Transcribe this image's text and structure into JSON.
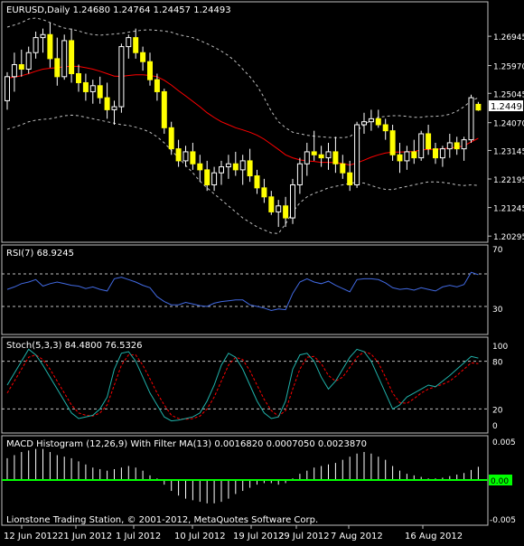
{
  "colors": {
    "background": "#000000",
    "panel_border": "#c0c0c0",
    "text": "#ffffff",
    "candle_bull_body": "#000000",
    "candle_bull_border": "#ffffff",
    "candle_bear_body": "#ffff00",
    "bands": "#c0c0c0",
    "ma": "#ff0000",
    "rsi": "#4169e1",
    "stoch_main": "#20b2aa",
    "stoch_signal": "#ff0000",
    "macd_bars": "#ffffff",
    "macd_filter": "#00ff00",
    "current_price_bg": "#ffffff",
    "current_price_text": "#000000"
  },
  "chart_data": [
    {
      "type": "candlestick",
      "title": "EURUSD,Daily  1.24680 1.24764 1.24457 1.24493",
      "symbol": "EURUSD,Daily",
      "ohlc_text": "1.24680 1.24764 1.24457 1.24493",
      "current_price": "1.24493",
      "y_ticks": [
        "1.26945",
        "1.25970",
        "1.25045",
        "1.24070",
        "1.23145",
        "1.22195",
        "1.21245",
        "1.20295"
      ],
      "ylim": [
        1.2021,
        1.2755
      ],
      "x_labels": [
        "12 Jun 2012",
        "21 Jun 2012",
        "1 Jul 2012",
        "10 Jul 2012",
        "19 Jul 2012",
        "29 Jul 2012",
        "7 Aug 2012",
        "16 Aug 2012"
      ],
      "candles": [
        [
          1.248,
          1.2575,
          1.245,
          1.256
        ],
        [
          1.256,
          1.264,
          1.251,
          1.26
        ],
        [
          1.26,
          1.265,
          1.256,
          1.2585
        ],
        [
          1.2585,
          1.266,
          1.257,
          1.264
        ],
        [
          1.264,
          1.271,
          1.262,
          1.269
        ],
        [
          1.269,
          1.272,
          1.264,
          1.27
        ],
        [
          1.27,
          1.274,
          1.259,
          1.262
        ],
        [
          1.262,
          1.269,
          1.253,
          1.256
        ],
        [
          1.256,
          1.27,
          1.255,
          1.268
        ],
        [
          1.268,
          1.272,
          1.254,
          1.257
        ],
        [
          1.257,
          1.26,
          1.251,
          1.254
        ],
        [
          1.254,
          1.257,
          1.248,
          1.251
        ],
        [
          1.251,
          1.255,
          1.247,
          1.253
        ],
        [
          1.253,
          1.256,
          1.247,
          1.249
        ],
        [
          1.249,
          1.254,
          1.242,
          1.245
        ],
        [
          1.245,
          1.248,
          1.24,
          1.246
        ],
        [
          1.246,
          1.267,
          1.244,
          1.266
        ],
        [
          1.266,
          1.27,
          1.262,
          1.269
        ],
        [
          1.269,
          1.272,
          1.262,
          1.264
        ],
        [
          1.264,
          1.266,
          1.258,
          1.261
        ],
        [
          1.261,
          1.264,
          1.253,
          1.255
        ],
        [
          1.255,
          1.257,
          1.248,
          1.251
        ],
        [
          1.251,
          1.252,
          1.237,
          1.239
        ],
        [
          1.239,
          1.241,
          1.23,
          1.232
        ],
        [
          1.232,
          1.235,
          1.226,
          1.228
        ],
        [
          1.228,
          1.233,
          1.226,
          1.231
        ],
        [
          1.231,
          1.234,
          1.225,
          1.227
        ],
        [
          1.227,
          1.23,
          1.221,
          1.225
        ],
        [
          1.225,
          1.228,
          1.218,
          1.22
        ],
        [
          1.22,
          1.226,
          1.218,
          1.224
        ],
        [
          1.224,
          1.228,
          1.22,
          1.226
        ],
        [
          1.226,
          1.23,
          1.222,
          1.227
        ],
        [
          1.227,
          1.231,
          1.223,
          1.225
        ],
        [
          1.225,
          1.23,
          1.22,
          1.228
        ],
        [
          1.228,
          1.232,
          1.221,
          1.223
        ],
        [
          1.223,
          1.225,
          1.217,
          1.219
        ],
        [
          1.219,
          1.222,
          1.214,
          1.216
        ],
        [
          1.216,
          1.218,
          1.21,
          1.211
        ],
        [
          1.211,
          1.215,
          1.206,
          1.213
        ],
        [
          1.213,
          1.216,
          1.206,
          1.209
        ],
        [
          1.209,
          1.222,
          1.207,
          1.22
        ],
        [
          1.22,
          1.229,
          1.217,
          1.227
        ],
        [
          1.227,
          1.234,
          1.223,
          1.231
        ],
        [
          1.231,
          1.238,
          1.228,
          1.23
        ],
        [
          1.23,
          1.233,
          1.226,
          1.229
        ],
        [
          1.229,
          1.234,
          1.225,
          1.231
        ],
        [
          1.231,
          1.236,
          1.224,
          1.227
        ],
        [
          1.227,
          1.23,
          1.222,
          1.224
        ],
        [
          1.224,
          1.228,
          1.218,
          1.22
        ],
        [
          1.22,
          1.241,
          1.219,
          1.24
        ],
        [
          1.24,
          1.244,
          1.237,
          1.241
        ],
        [
          1.241,
          1.245,
          1.238,
          1.242
        ],
        [
          1.242,
          1.245,
          1.239,
          1.24
        ],
        [
          1.24,
          1.242,
          1.235,
          1.238
        ],
        [
          1.238,
          1.24,
          1.228,
          1.23
        ],
        [
          1.23,
          1.234,
          1.224,
          1.228
        ],
        [
          1.228,
          1.233,
          1.225,
          1.231
        ],
        [
          1.231,
          1.235,
          1.227,
          1.229
        ],
        [
          1.229,
          1.238,
          1.228,
          1.237
        ],
        [
          1.237,
          1.24,
          1.23,
          1.232
        ],
        [
          1.232,
          1.234,
          1.227,
          1.229
        ],
        [
          1.229,
          1.233,
          1.226,
          1.232
        ],
        [
          1.232,
          1.237,
          1.229,
          1.234
        ],
        [
          1.234,
          1.236,
          1.23,
          1.232
        ],
        [
          1.232,
          1.236,
          1.228,
          1.235
        ],
        [
          1.235,
          1.25,
          1.234,
          1.249
        ],
        [
          1.2468,
          1.2476,
          1.2446,
          1.2449
        ]
      ],
      "ma": [
        1.2555,
        1.2559,
        1.2563,
        1.257,
        1.2578,
        1.2585,
        1.2588,
        1.259,
        1.2593,
        1.2595,
        1.2594,
        1.259,
        1.2585,
        1.2578,
        1.257,
        1.2562,
        1.2561,
        1.2564,
        1.2566,
        1.2566,
        1.2564,
        1.256,
        1.2548,
        1.2532,
        1.2513,
        1.2496,
        1.2478,
        1.246,
        1.244,
        1.2424,
        1.241,
        1.24,
        1.239,
        1.2383,
        1.2375,
        1.2365,
        1.2352,
        1.2335,
        1.2318,
        1.23,
        1.229,
        1.2283,
        1.228,
        1.2278,
        1.2275,
        1.2275,
        1.2274,
        1.2271,
        1.2266,
        1.2273,
        1.2282,
        1.2292,
        1.23,
        1.2306,
        1.2309,
        1.2309,
        1.231,
        1.2311,
        1.2316,
        1.2318,
        1.2318,
        1.232,
        1.2323,
        1.2325,
        1.233,
        1.2343,
        1.2355
      ],
      "upper_band": [
        1.2725,
        1.2732,
        1.274,
        1.2752,
        1.2755,
        1.275,
        1.274,
        1.273,
        1.2722,
        1.2718,
        1.2712,
        1.2705,
        1.27,
        1.2698,
        1.27,
        1.2702,
        1.2704,
        1.2708,
        1.2712,
        1.2715,
        1.2716,
        1.2714,
        1.2712,
        1.2708,
        1.27,
        1.2695,
        1.269,
        1.268,
        1.267,
        1.2658,
        1.2645,
        1.263,
        1.261,
        1.2585,
        1.256,
        1.253,
        1.249,
        1.2445,
        1.241,
        1.239,
        1.2375,
        1.237,
        1.2365,
        1.2362,
        1.236,
        1.2358,
        1.2357,
        1.2357,
        1.236,
        1.238,
        1.24,
        1.2415,
        1.2425,
        1.2428,
        1.243,
        1.243,
        1.2428,
        1.2425,
        1.2425,
        1.2428,
        1.2428,
        1.243,
        1.2435,
        1.2445,
        1.246,
        1.248,
        1.249
      ],
      "lower_band": [
        1.2385,
        1.2392,
        1.24,
        1.241,
        1.2415,
        1.2418,
        1.242,
        1.2425,
        1.243,
        1.2432,
        1.243,
        1.2425,
        1.242,
        1.2415,
        1.241,
        1.2405,
        1.24,
        1.2398,
        1.2392,
        1.2385,
        1.2375,
        1.236,
        1.234,
        1.2315,
        1.229,
        1.2265,
        1.224,
        1.2212,
        1.219,
        1.217,
        1.215,
        1.213,
        1.211,
        1.209,
        1.2075,
        1.206,
        1.205,
        1.204,
        1.2038,
        1.207,
        1.211,
        1.214,
        1.216,
        1.2172,
        1.218,
        1.219,
        1.2195,
        1.22,
        1.2205,
        1.2208,
        1.2206,
        1.2198,
        1.219,
        1.2185,
        1.2184,
        1.219,
        1.2195,
        1.22,
        1.2205,
        1.221,
        1.221,
        1.2208,
        1.2205,
        1.22,
        1.2198,
        1.22,
        1.2198
      ]
    },
    {
      "type": "line",
      "title": "RSI(7) 68.9245",
      "ylim": [
        0,
        100
      ],
      "y_ticks": [
        70,
        30
      ],
      "y_tick_top": "70",
      "y_tick_bottom": "30",
      "levels": [
        70,
        30
      ],
      "values": [
        51,
        54,
        58,
        60,
        63,
        55,
        58,
        60,
        58,
        56,
        55,
        52,
        54,
        51,
        49,
        64,
        66,
        63,
        60,
        56,
        53,
        42,
        36,
        32,
        32,
        35,
        33,
        31,
        30,
        34,
        36,
        37,
        38,
        38,
        32,
        30,
        28,
        25,
        27,
        26,
        46,
        60,
        64,
        60,
        58,
        61,
        56,
        52,
        48,
        63,
        64,
        64,
        63,
        59,
        53,
        51,
        52,
        50,
        53,
        51,
        49,
        54,
        56,
        54,
        57,
        72,
        69
      ]
    },
    {
      "type": "line",
      "title": "Stoch(5,3,3) 84.4800 76.5326",
      "ylim": [
        0,
        100
      ],
      "y_ticks": [
        "100",
        "80",
        "20",
        "0"
      ],
      "levels": [
        80,
        20
      ],
      "series": [
        {
          "values": [
            50,
            65,
            80,
            95,
            88,
            75,
            60,
            45,
            30,
            15,
            8,
            10,
            12,
            20,
            35,
            70,
            90,
            92,
            80,
            60,
            40,
            25,
            10,
            5,
            6,
            8,
            10,
            15,
            30,
            50,
            75,
            90,
            85,
            70,
            50,
            30,
            15,
            8,
            10,
            30,
            70,
            88,
            90,
            80,
            60,
            45,
            55,
            70,
            85,
            95,
            92,
            80,
            60,
            40,
            20,
            25,
            35,
            40,
            45,
            50,
            48,
            55,
            62,
            70,
            78,
            86,
            84
          ]
        },
        {
          "values": [
            40,
            55,
            70,
            85,
            88,
            82,
            70,
            55,
            40,
            25,
            15,
            12,
            11,
            15,
            25,
            50,
            75,
            88,
            88,
            75,
            58,
            40,
            25,
            12,
            8,
            7,
            8,
            11,
            20,
            35,
            55,
            75,
            85,
            82,
            68,
            50,
            32,
            18,
            11,
            18,
            45,
            70,
            85,
            86,
            77,
            62,
            55,
            60,
            72,
            85,
            92,
            89,
            78,
            60,
            40,
            28,
            27,
            33,
            40,
            45,
            48,
            51,
            55,
            62,
            70,
            78,
            77
          ]
        }
      ]
    },
    {
      "type": "bar",
      "title": "MACD Histogram (12,26,9) With Filter MA(13)  0.0016820 0.0007050 0.0023870",
      "ylim": [
        -0.005,
        0.005
      ],
      "y_tick_top": "0.005",
      "y_tick_zero": "0.00",
      "y_tick_bottom": "-0.005",
      "values": [
        0.0028,
        0.0032,
        0.0036,
        0.0038,
        0.004,
        0.004,
        0.0036,
        0.0032,
        0.003,
        0.0028,
        0.0024,
        0.002,
        0.0016,
        0.0014,
        0.0012,
        0.0014,
        0.0016,
        0.0018,
        0.0016,
        0.0012,
        0.0006,
        0.0002,
        -0.0006,
        -0.0014,
        -0.002,
        -0.0024,
        -0.0026,
        -0.0028,
        -0.003,
        -0.003,
        -0.0028,
        -0.0024,
        -0.0018,
        -0.0014,
        -0.001,
        -0.0006,
        -0.0004,
        -0.0004,
        -0.0006,
        -0.0004,
        0.0002,
        0.0008,
        0.0012,
        0.0016,
        0.0018,
        0.002,
        0.0022,
        0.0026,
        0.003,
        0.0034,
        0.0036,
        0.0034,
        0.003,
        0.0026,
        0.0018,
        0.0012,
        0.0008,
        0.0006,
        0.0004,
        0.0002,
        0.0002,
        0.0003,
        0.0005,
        0.0007,
        0.0009,
        0.0013,
        0.0017
      ],
      "filter_ma": 0.0
    }
  ],
  "footer": "Lionstone Trading Station, © 2001-2012, MetaQuotes Software Corp."
}
